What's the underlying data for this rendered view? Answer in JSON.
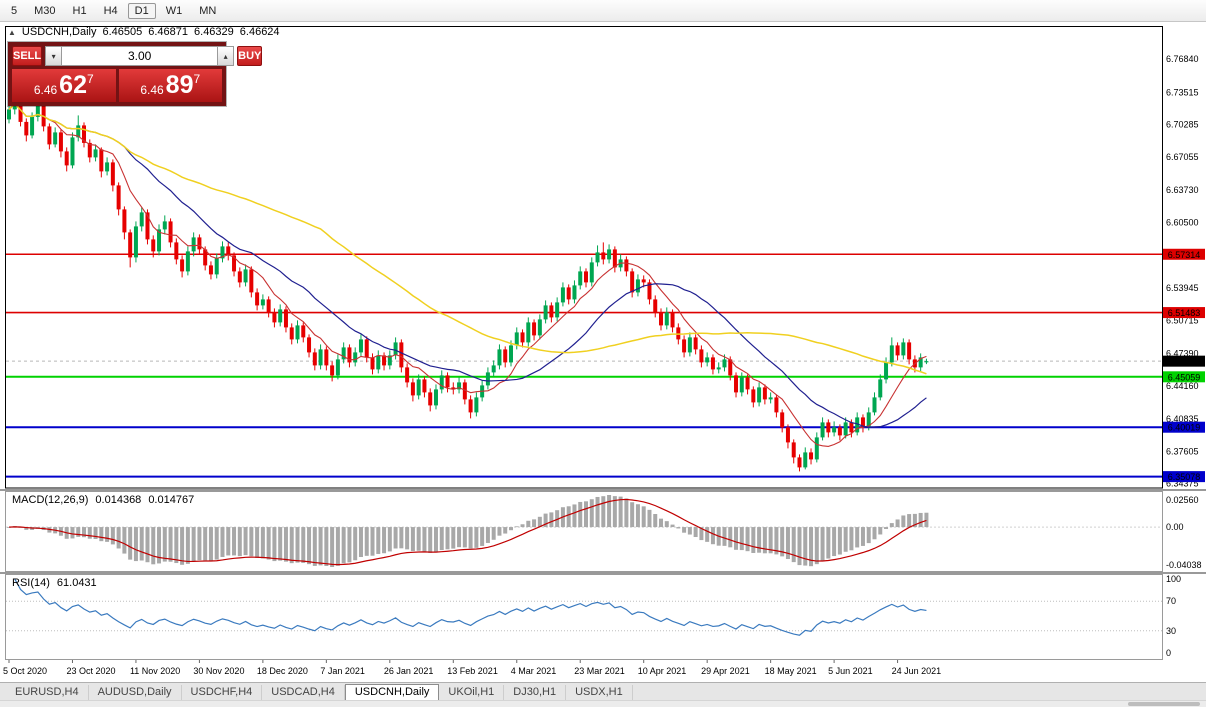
{
  "toolbar": {
    "timeframes": [
      {
        "label": "5",
        "active": false
      },
      {
        "label": "M30",
        "active": false
      },
      {
        "label": "H1",
        "active": false
      },
      {
        "label": "H4",
        "active": false
      },
      {
        "label": "D1",
        "active": true
      },
      {
        "label": "W1",
        "active": false
      },
      {
        "label": "MN",
        "active": false
      }
    ]
  },
  "icons": {
    "one_click": "▲",
    "spin_down": "▾",
    "spin_up": "▴"
  },
  "chart_data": {
    "type": "candlestick",
    "symbol": "USDCNH",
    "timeframe": "Daily",
    "info": {
      "symbol_period": "USDCNH,Daily",
      "open": "6.46505",
      "high": "6.46871",
      "low": "6.46329",
      "close": "6.46624"
    },
    "trade_panel": {
      "sell_label": "SELL",
      "buy_label": "BUY",
      "volume": "3.00",
      "sell_price": {
        "prefix": "6.46",
        "big": "62",
        "sup": "7"
      },
      "buy_price": {
        "prefix": "6.46",
        "big": "89",
        "sup": "7"
      }
    },
    "price_range": {
      "min": 6.3384,
      "max": 6.8054
    },
    "price_axis_labels": [
      "6.76840",
      "6.73515",
      "6.70285",
      "6.67055",
      "6.63730",
      "6.60500",
      "6.53945",
      "6.50715",
      "6.47390",
      "6.44160",
      "6.40835",
      "6.37605",
      "6.34375"
    ],
    "hlines": [
      {
        "price": 6.57314,
        "color": "#dd0000",
        "width": 1.6
      },
      {
        "price": 6.51483,
        "color": "#dd0000",
        "width": 1.6
      },
      {
        "price": 6.45059,
        "color": "#00d200",
        "width": 2
      },
      {
        "price": 6.40019,
        "color": "#0000cc",
        "width": 2
      },
      {
        "price": 6.35078,
        "color": "#0000cc",
        "width": 2
      }
    ],
    "current_price": {
      "value": 6.46624,
      "badge_bg": "#000000"
    },
    "colors": {
      "up": "#00a651",
      "down": "#e60000",
      "background": "#ffffff",
      "frame": "#000000"
    },
    "moving_averages": [
      {
        "period": 8,
        "color": "#c83232",
        "width": 1.1
      },
      {
        "period": 21,
        "color": "#202090",
        "width": 1.2
      },
      {
        "period": 55,
        "color": "#f0d020",
        "width": 1.5
      }
    ],
    "date_axis_labels": [
      "5 Oct 2020",
      "23 Oct 2020",
      "11 Nov 2020",
      "30 Nov 2020",
      "18 Dec 2020",
      "7 Jan 2021",
      "26 Jan 2021",
      "13 Feb 2021",
      "4 Mar 2021",
      "23 Mar 2021",
      "10 Apr 2021",
      "29 Apr 2021",
      "18 May 2021",
      "5 Jun 2021",
      "24 Jun 2021"
    ],
    "candles": [
      [
        6.708,
        6.723,
        6.704,
        6.718
      ],
      [
        6.718,
        6.734,
        6.713,
        6.729
      ],
      [
        6.729,
        6.732,
        6.701,
        6.7055
      ],
      [
        6.7055,
        6.709,
        6.686,
        6.692
      ],
      [
        6.692,
        6.715,
        6.689,
        6.7105
      ],
      [
        6.7105,
        6.728,
        6.706,
        6.722
      ],
      [
        6.722,
        6.725,
        6.696,
        6.701
      ],
      [
        6.701,
        6.704,
        6.678,
        6.683
      ],
      [
        6.683,
        6.7,
        6.68,
        6.695
      ],
      [
        6.695,
        6.698,
        6.67,
        6.676
      ],
      [
        6.676,
        6.68,
        6.656,
        6.662
      ],
      [
        6.662,
        6.695,
        6.659,
        6.69
      ],
      [
        6.69,
        6.712,
        6.686,
        6.702
      ],
      [
        6.702,
        6.705,
        6.68,
        6.6845
      ],
      [
        6.6845,
        6.688,
        6.665,
        6.67
      ],
      [
        6.67,
        6.683,
        6.666,
        6.678
      ],
      [
        6.678,
        6.68,
        6.65,
        6.656
      ],
      [
        6.656,
        6.67,
        6.652,
        6.665
      ],
      [
        6.665,
        6.668,
        6.636,
        6.642
      ],
      [
        6.642,
        6.645,
        6.612,
        6.618
      ],
      [
        6.618,
        6.621,
        6.588,
        6.595
      ],
      [
        6.595,
        6.598,
        6.56,
        6.57
      ],
      [
        6.57,
        6.606,
        6.565,
        6.601
      ],
      [
        6.601,
        6.62,
        6.596,
        6.615
      ],
      [
        6.615,
        6.618,
        6.583,
        6.588
      ],
      [
        6.588,
        6.592,
        6.57,
        6.576
      ],
      [
        6.576,
        6.603,
        6.572,
        6.598
      ],
      [
        6.598,
        6.612,
        6.593,
        6.606
      ],
      [
        6.606,
        6.609,
        6.58,
        6.585
      ],
      [
        6.585,
        6.589,
        6.563,
        6.568
      ],
      [
        6.568,
        6.572,
        6.55,
        6.556
      ],
      [
        6.556,
        6.581,
        6.552,
        6.576
      ],
      [
        6.576,
        6.595,
        6.571,
        6.59
      ],
      [
        6.59,
        6.593,
        6.573,
        6.578
      ],
      [
        6.578,
        6.581,
        6.557,
        6.562
      ],
      [
        6.562,
        6.566,
        6.548,
        6.553
      ],
      [
        6.553,
        6.574,
        6.549,
        6.569
      ],
      [
        6.569,
        6.586,
        6.565,
        6.581
      ],
      [
        6.581,
        6.585,
        6.567,
        6.572
      ],
      [
        6.572,
        6.575,
        6.551,
        6.556
      ],
      [
        6.556,
        6.56,
        6.54,
        6.545
      ],
      [
        6.545,
        6.563,
        6.541,
        6.558
      ],
      [
        6.558,
        6.561,
        6.53,
        6.535
      ],
      [
        6.535,
        6.539,
        6.517,
        6.522
      ],
      [
        6.522,
        6.533,
        6.518,
        6.528
      ],
      [
        6.528,
        6.531,
        6.51,
        6.515
      ],
      [
        6.515,
        6.519,
        6.5,
        6.505
      ],
      [
        6.505,
        6.523,
        6.501,
        6.518
      ],
      [
        6.518,
        6.521,
        6.495,
        6.5
      ],
      [
        6.5,
        6.504,
        6.483,
        6.488
      ],
      [
        6.488,
        6.507,
        6.484,
        6.502
      ],
      [
        6.502,
        6.505,
        6.485,
        6.49
      ],
      [
        6.49,
        6.493,
        6.47,
        6.475
      ],
      [
        6.475,
        6.479,
        6.457,
        6.462
      ],
      [
        6.462,
        6.483,
        6.458,
        6.478
      ],
      [
        6.478,
        6.481,
        6.457,
        6.462
      ],
      [
        6.462,
        6.466,
        6.446,
        6.452
      ],
      [
        6.452,
        6.473,
        6.448,
        6.468
      ],
      [
        6.468,
        6.485,
        6.464,
        6.48
      ],
      [
        6.48,
        6.483,
        6.46,
        6.465
      ],
      [
        6.465,
        6.48,
        6.461,
        6.475
      ],
      [
        6.475,
        6.493,
        6.471,
        6.488
      ],
      [
        6.488,
        6.491,
        6.465,
        6.47
      ],
      [
        6.47,
        6.474,
        6.453,
        6.458
      ],
      [
        6.458,
        6.477,
        6.454,
        6.472
      ],
      [
        6.472,
        6.475,
        6.457,
        6.462
      ],
      [
        6.462,
        6.477,
        6.458,
        6.472
      ],
      [
        6.472,
        6.49,
        6.468,
        6.485
      ],
      [
        6.485,
        6.488,
        6.455,
        6.46
      ],
      [
        6.46,
        6.464,
        6.44,
        6.445
      ],
      [
        6.445,
        6.449,
        6.426,
        6.432
      ],
      [
        6.432,
        6.453,
        6.428,
        6.448
      ],
      [
        6.448,
        6.451,
        6.43,
        6.435
      ],
      [
        6.435,
        6.439,
        6.416,
        6.422
      ],
      [
        6.422,
        6.443,
        6.418,
        6.438
      ],
      [
        6.438,
        6.457,
        6.434,
        6.452
      ],
      [
        6.452,
        6.455,
        6.435,
        6.44
      ],
      [
        6.44,
        6.445,
        6.433,
        6.438
      ],
      [
        6.438,
        6.45,
        6.434,
        6.445
      ],
      [
        6.445,
        6.448,
        6.423,
        6.428
      ],
      [
        6.428,
        6.432,
        6.409,
        6.415
      ],
      [
        6.415,
        6.435,
        6.411,
        6.43
      ],
      [
        6.43,
        6.447,
        6.426,
        6.442
      ],
      [
        6.442,
        6.46,
        6.438,
        6.455
      ],
      [
        6.455,
        6.467,
        6.451,
        6.462
      ],
      [
        6.462,
        6.483,
        6.458,
        6.478
      ],
      [
        6.478,
        6.481,
        6.46,
        6.465
      ],
      [
        6.465,
        6.487,
        6.461,
        6.482
      ],
      [
        6.482,
        6.5,
        6.478,
        6.495
      ],
      [
        6.495,
        6.498,
        6.48,
        6.485
      ],
      [
        6.485,
        6.51,
        6.481,
        6.505
      ],
      [
        6.505,
        6.508,
        6.487,
        6.492
      ],
      [
        6.492,
        6.513,
        6.488,
        6.508
      ],
      [
        6.508,
        6.527,
        6.504,
        6.522
      ],
      [
        6.522,
        6.525,
        6.505,
        6.51
      ],
      [
        6.51,
        6.53,
        6.506,
        6.525
      ],
      [
        6.525,
        6.545,
        6.521,
        6.54
      ],
      [
        6.54,
        6.543,
        6.523,
        6.528
      ],
      [
        6.528,
        6.547,
        6.524,
        6.542
      ],
      [
        6.542,
        6.561,
        6.538,
        6.556
      ],
      [
        6.556,
        6.559,
        6.54,
        6.545
      ],
      [
        6.545,
        6.57,
        6.541,
        6.565
      ],
      [
        6.565,
        6.582,
        6.561,
        6.575
      ],
      [
        6.575,
        6.585,
        6.563,
        6.568
      ],
      [
        6.568,
        6.583,
        6.564,
        6.578
      ],
      [
        6.578,
        6.581,
        6.555,
        6.56
      ],
      [
        6.56,
        6.573,
        6.556,
        6.568
      ],
      [
        6.568,
        6.571,
        6.551,
        6.556
      ],
      [
        6.556,
        6.559,
        6.53,
        6.535
      ],
      [
        6.535,
        6.553,
        6.531,
        6.548
      ],
      [
        6.548,
        6.552,
        6.54,
        6.545
      ],
      [
        6.545,
        6.548,
        6.523,
        6.528
      ],
      [
        6.528,
        6.532,
        6.51,
        6.515
      ],
      [
        6.515,
        6.519,
        6.497,
        6.502
      ],
      [
        6.502,
        6.52,
        6.498,
        6.515
      ],
      [
        6.515,
        6.518,
        6.495,
        6.5
      ],
      [
        6.5,
        6.504,
        6.483,
        6.488
      ],
      [
        6.488,
        6.492,
        6.47,
        6.475
      ],
      [
        6.475,
        6.495,
        6.471,
        6.49
      ],
      [
        6.49,
        6.493,
        6.473,
        6.478
      ],
      [
        6.478,
        6.482,
        6.46,
        6.465
      ],
      [
        6.465,
        6.475,
        6.461,
        6.47
      ],
      [
        6.47,
        6.473,
        6.453,
        6.458
      ],
      [
        6.458,
        6.465,
        6.454,
        6.46
      ],
      [
        6.46,
        6.473,
        6.456,
        6.468
      ],
      [
        6.468,
        6.471,
        6.447,
        6.452
      ],
      [
        6.452,
        6.455,
        6.43,
        6.435
      ],
      [
        6.435,
        6.455,
        6.431,
        6.45
      ],
      [
        6.45,
        6.453,
        6.433,
        6.438
      ],
      [
        6.438,
        6.441,
        6.42,
        6.425
      ],
      [
        6.425,
        6.445,
        6.421,
        6.44
      ],
      [
        6.44,
        6.443,
        6.423,
        6.428
      ],
      [
        6.428,
        6.435,
        6.424,
        6.43
      ],
      [
        6.43,
        6.433,
        6.41,
        6.415
      ],
      [
        6.415,
        6.418,
        6.395,
        6.4
      ],
      [
        6.4,
        6.403,
        6.379,
        6.385
      ],
      [
        6.385,
        6.388,
        6.364,
        6.37
      ],
      [
        6.37,
        6.373,
        6.356,
        6.36
      ],
      [
        6.36,
        6.38,
        6.358,
        6.375
      ],
      [
        6.375,
        6.379,
        6.363,
        6.368
      ],
      [
        6.368,
        6.395,
        6.365,
        6.39
      ],
      [
        6.39,
        6.41,
        6.387,
        6.405
      ],
      [
        6.405,
        6.408,
        6.39,
        6.395
      ],
      [
        6.395,
        6.406,
        6.391,
        6.4
      ],
      [
        6.4,
        6.403,
        6.387,
        6.392
      ],
      [
        6.392,
        6.41,
        6.389,
        6.405
      ],
      [
        6.405,
        6.408,
        6.39,
        6.395
      ],
      [
        6.395,
        6.415,
        6.392,
        6.41
      ],
      [
        6.41,
        6.413,
        6.395,
        6.4
      ],
      [
        6.4,
        6.42,
        6.397,
        6.415
      ],
      [
        6.415,
        6.435,
        6.412,
        6.43
      ],
      [
        6.43,
        6.453,
        6.427,
        6.448
      ],
      [
        6.448,
        6.47,
        6.444,
        6.465
      ],
      [
        6.465,
        6.49,
        6.461,
        6.482
      ],
      [
        6.482,
        6.485,
        6.467,
        6.472
      ],
      [
        6.472,
        6.489,
        6.468,
        6.485
      ],
      [
        6.485,
        6.488,
        6.463,
        6.468
      ],
      [
        6.468,
        6.472,
        6.455,
        6.46
      ],
      [
        6.46,
        6.474,
        6.456,
        6.47
      ],
      [
        6.46505,
        6.46871,
        6.46329,
        6.46624
      ]
    ],
    "indicators": {
      "macd": {
        "label": "MACD(12,26,9)",
        "value_main": "0.014368",
        "value_signal": "0.014767",
        "fast": 12,
        "slow": 26,
        "signal": 9,
        "axis_top": "0.02560",
        "axis_zero": "0.00",
        "axis_bottom": "-0.04038",
        "hist_color": "#a8a8a8",
        "line_color": "#c00000"
      },
      "rsi": {
        "label": "RSI(14)",
        "value": "61.0431",
        "period": 14,
        "axis_labels": [
          "100",
          "70",
          "30",
          "0"
        ],
        "levels": [
          70,
          30
        ],
        "line_color": "#3a7abf"
      }
    }
  },
  "tabs": [
    {
      "label": "EURUSD,H4",
      "active": false
    },
    {
      "label": "AUDUSD,Daily",
      "active": false
    },
    {
      "label": "USDCHF,H4",
      "active": false
    },
    {
      "label": "USDCAD,H4",
      "active": false
    },
    {
      "label": "USDCNH,Daily",
      "active": true
    },
    {
      "label": "UKOil,H1",
      "active": false
    },
    {
      "label": "DJ30,H1",
      "active": false
    },
    {
      "label": "USDX,H1",
      "active": false
    }
  ]
}
